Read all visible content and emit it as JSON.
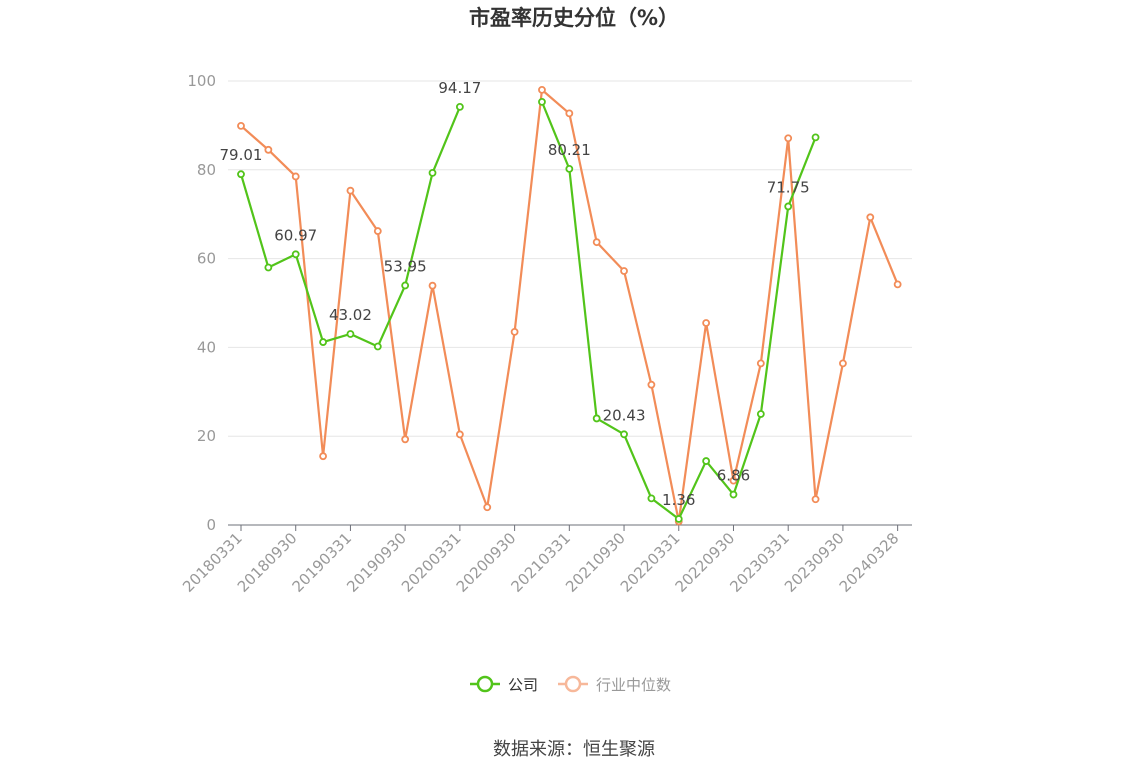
{
  "chart_data": {
    "type": "line",
    "title": "市盈率历史分位（%）",
    "source": "数据来源：恒生聚源",
    "xlabel": "",
    "ylabel": "",
    "ylim": [
      0,
      100
    ],
    "yticks": [
      0,
      20,
      40,
      60,
      80,
      100
    ],
    "grid": true,
    "legend_position": "bottom-center",
    "x": [
      "20180331",
      "20180630",
      "20180930",
      "20181231",
      "20190331",
      "20190630",
      "20190930",
      "20191231",
      "20200331",
      "20200630",
      "20200930",
      "20201231",
      "20210331",
      "20210630",
      "20210930",
      "20211231",
      "20220331",
      "20220630",
      "20220930",
      "20221231",
      "20230331",
      "20230630",
      "20230930",
      "20231231",
      "20240328"
    ],
    "xtick_labels": [
      "20180331",
      "20180930",
      "20190331",
      "20190930",
      "20200331",
      "20200930",
      "20210331",
      "20210930",
      "20220331",
      "20220930",
      "20230331",
      "20230930",
      "20240328"
    ],
    "series": [
      {
        "name": "公司",
        "color": "#52c41a",
        "values": [
          79.01,
          58,
          60.97,
          41.2,
          43.02,
          40.2,
          53.95,
          79.3,
          94.17,
          null,
          null,
          95.3,
          80.21,
          24,
          20.43,
          6,
          1.36,
          14.4,
          6.86,
          25,
          71.75,
          87.3,
          null,
          null,
          null
        ],
        "labels": {
          "0": "79.01",
          "2": "60.97",
          "4": "43.02",
          "6": "53.95",
          "8": "94.17",
          "12": "80.21",
          "14": "20.43",
          "16": "1.36",
          "18": "6.86",
          "20": "71.75"
        }
      },
      {
        "name": "行业中位数",
        "color": "#f28c58",
        "values": [
          89.9,
          84.5,
          78.5,
          15.5,
          75.3,
          66.2,
          19.3,
          53.9,
          20.4,
          4,
          43.5,
          98,
          92.7,
          63.7,
          57.2,
          31.6,
          0.8,
          45.5,
          10,
          36.4,
          87.1,
          5.8,
          36.4,
          69.3,
          54.2
        ]
      }
    ]
  }
}
